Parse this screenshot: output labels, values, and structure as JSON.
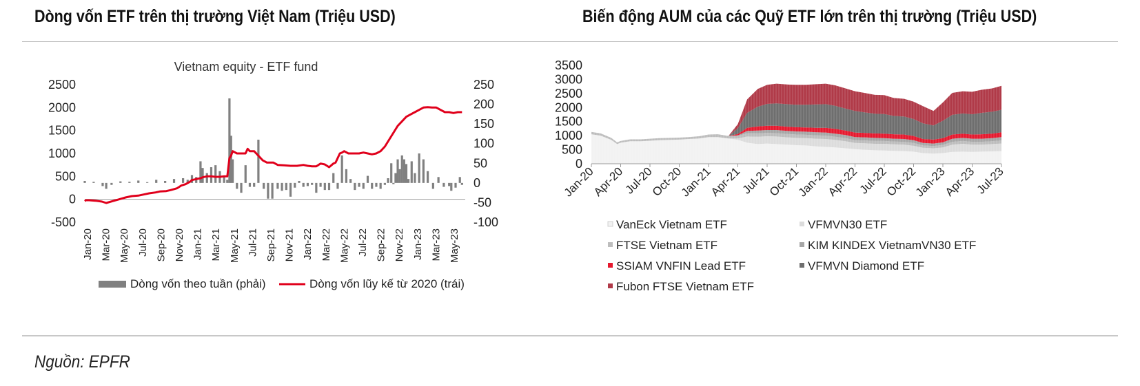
{
  "page": {
    "left_title": "Dòng vốn ETF trên thị trường Việt Nam (Triệu USD)",
    "right_title": "Biến động AUM của các Quỹ ETF lớn trên thị trường (Triệu USD)",
    "source": "Nguồn: EPFR"
  },
  "chart_data": [
    {
      "type": "bar+line",
      "title": "Vietnam equity - ETF fund",
      "x_tick_labels": [
        "Jan-20",
        "Mar-20",
        "May-20",
        "Jul-20",
        "Sep-20",
        "Nov-20",
        "Jan-21",
        "Mar-21",
        "May-21",
        "Jul-21",
        "Sep-21",
        "Nov-21",
        "Jan-22",
        "Mar-22",
        "May-22",
        "Jul-22",
        "Sep-22",
        "Nov-22",
        "Jan-23",
        "Mar-23",
        "May-23"
      ],
      "left_axis": {
        "ticks": [
          "2500",
          "2000",
          "1500",
          "1000",
          "500",
          "0",
          "-500"
        ],
        "ylim": [
          -500,
          2500
        ]
      },
      "right_axis": {
        "ticks": [
          "250",
          "200",
          "150",
          "100",
          "50",
          "0",
          "-50",
          "-100"
        ],
        "ylim": [
          -100,
          250
        ]
      },
      "legend": "bottom",
      "series": [
        {
          "name": "Dòng vốn theo tuần (phải)",
          "kind": "bar",
          "axis": "right",
          "color": "#808080",
          "x": [
            2020.0,
            2020.083,
            2020.167,
            2020.2,
            2020.25,
            2020.333,
            2020.417,
            2020.5,
            2020.583,
            2020.667,
            2020.75,
            2020.833,
            2020.917,
            2020.96,
            2021.0,
            2021.04,
            2021.08,
            2021.1,
            2021.14,
            2021.18,
            2021.22,
            2021.26,
            2021.3,
            2021.33,
            2021.35,
            2021.365,
            2021.38,
            2021.42,
            2021.46,
            2021.5,
            2021.54,
            2021.58,
            2021.62,
            2021.67,
            2021.71,
            2021.75,
            2021.8,
            2021.84,
            2021.88,
            2021.92,
            2021.96,
            2022.0,
            2022.04,
            2022.08,
            2022.12,
            2022.16,
            2022.2,
            2022.24,
            2022.28,
            2022.32,
            2022.36,
            2022.4,
            2022.44,
            2022.48,
            2022.52,
            2022.56,
            2022.6,
            2022.64,
            2022.68,
            2022.72,
            2022.76,
            2022.8,
            2022.83,
            2022.86,
            2022.88,
            2022.9,
            2022.92,
            2022.94,
            2022.96,
            2022.98,
            2023.0,
            2023.02,
            2023.05,
            2023.08,
            2023.12,
            2023.16,
            2023.2,
            2023.25,
            2023.3,
            2023.35,
            2023.4,
            2023.42,
            2023.46,
            2023.5,
            2023.52
          ],
          "values": [
            5,
            3,
            -8,
            -15,
            -5,
            4,
            3,
            6,
            2,
            8,
            5,
            10,
            12,
            8,
            20,
            15,
            55,
            38,
            25,
            40,
            45,
            30,
            15,
            8,
            215,
            120,
            60,
            -15,
            -25,
            45,
            -10,
            -10,
            110,
            -15,
            -40,
            -40,
            -15,
            -20,
            -18,
            -35,
            -12,
            5,
            -10,
            -8,
            -5,
            -25,
            -10,
            -18,
            -18,
            25,
            -15,
            70,
            35,
            10,
            -18,
            -10,
            -15,
            18,
            -15,
            -10,
            -15,
            -5,
            12,
            50,
            -3,
            25,
            60,
            35,
            70,
            60,
            48,
            10,
            55,
            25,
            75,
            60,
            30,
            -15,
            15,
            -10,
            -8,
            -20,
            -12,
            15,
            -5
          ]
        },
        {
          "name": "Dòng vốn lũy kế từ 2020 (trái)",
          "kind": "line",
          "axis": "left",
          "color": "#e0001b",
          "x": [
            2020.0,
            2020.01,
            2020.04,
            2020.1,
            2020.16,
            2020.2,
            2020.26,
            2020.32,
            2020.38,
            2020.44,
            2020.5,
            2020.56,
            2020.6,
            2020.66,
            2020.7,
            2020.76,
            2020.8,
            2020.86,
            2020.9,
            2020.94,
            2020.98,
            2021.0,
            2021.04,
            2021.08,
            2021.1,
            2021.14,
            2021.18,
            2021.22,
            2021.26,
            2021.3,
            2021.33,
            2021.35,
            2021.365,
            2021.38,
            2021.42,
            2021.46,
            2021.5,
            2021.52,
            2021.54,
            2021.58,
            2021.62,
            2021.66,
            2021.7,
            2021.76,
            2021.8,
            2021.86,
            2021.92,
            2021.98,
            2022.04,
            2022.08,
            2022.12,
            2022.16,
            2022.2,
            2022.24,
            2022.28,
            2022.32,
            2022.34,
            2022.38,
            2022.4,
            2022.42,
            2022.46,
            2022.52,
            2022.56,
            2022.6,
            2022.64,
            2022.68,
            2022.72,
            2022.76,
            2022.8,
            2022.84,
            2022.88,
            2022.92,
            2022.96,
            2023.0,
            2023.04,
            2023.08,
            2023.12,
            2023.16,
            2023.2,
            2023.24,
            2023.28,
            2023.32,
            2023.36,
            2023.4,
            2023.44,
            2023.48,
            2023.52
          ],
          "values": [
            -40,
            -20,
            -20,
            -30,
            -50,
            -80,
            -40,
            0,
            40,
            70,
            80,
            110,
            130,
            150,
            170,
            180,
            200,
            240,
            300,
            330,
            380,
            420,
            440,
            460,
            480,
            500,
            500,
            490,
            490,
            500,
            500,
            900,
            950,
            1050,
            1000,
            1000,
            1000,
            1100,
            1050,
            1050,
            950,
            850,
            800,
            800,
            750,
            740,
            730,
            730,
            750,
            730,
            720,
            720,
            780,
            760,
            700,
            780,
            800,
            1000,
            1020,
            1050,
            1000,
            1000,
            1000,
            1020,
            1000,
            980,
            1000,
            1050,
            1150,
            1300,
            1450,
            1600,
            1700,
            1800,
            1850,
            1900,
            1950,
            2000,
            2010,
            2000,
            2000,
            1950,
            1900,
            1900,
            1880,
            1900,
            1900
          ]
        }
      ]
    },
    {
      "type": "area",
      "stacked": true,
      "x_tick_labels": [
        "Jan-20",
        "Apr-20",
        "Jul-20",
        "Oct-20",
        "Jan-21",
        "Apr-21",
        "Jul-21",
        "Oct-21",
        "Jan-22",
        "Apr-22",
        "Jul-22",
        "Oct-22",
        "Jan-23",
        "Apr-23",
        "Jul-23"
      ],
      "y_ticks": [
        "3500",
        "3000",
        "2500",
        "2000",
        "1500",
        "1000",
        "500",
        "0"
      ],
      "ylim": [
        0,
        3500
      ],
      "legend": "bottom",
      "x": [
        2020.0,
        2020.08,
        2020.17,
        2020.22,
        2020.25,
        2020.33,
        2020.42,
        2020.5,
        2020.58,
        2020.67,
        2020.75,
        2020.83,
        2020.92,
        2021.0,
        2021.08,
        2021.17,
        2021.25,
        2021.33,
        2021.42,
        2021.5,
        2021.58,
        2021.67,
        2021.75,
        2021.83,
        2021.92,
        2022.0,
        2022.08,
        2022.17,
        2022.25,
        2022.33,
        2022.42,
        2022.5,
        2022.58,
        2022.67,
        2022.75,
        2022.83,
        2022.92,
        2023.0,
        2023.08,
        2023.17,
        2023.25,
        2023.33,
        2023.42,
        2023.5
      ],
      "series": [
        {
          "name": "VanEck Vietnam ETF",
          "color": "#f2f2f2",
          "values": [
            1050,
            1000,
            850,
            700,
            750,
            800,
            800,
            820,
            840,
            850,
            860,
            880,
            900,
            950,
            950,
            900,
            850,
            750,
            700,
            720,
            700,
            680,
            660,
            650,
            620,
            600,
            580,
            550,
            520,
            500,
            480,
            470,
            460,
            450,
            430,
            380,
            360,
            380,
            420,
            430,
            420,
            430,
            440,
            450
          ]
        },
        {
          "name": "VFMVN30 ETF",
          "color": "#dcdcdc",
          "values": [
            0,
            0,
            0,
            0,
            0,
            0,
            0,
            0,
            0,
            0,
            0,
            0,
            0,
            0,
            0,
            0,
            50,
            220,
            260,
            260,
            270,
            260,
            260,
            260,
            270,
            280,
            270,
            250,
            220,
            230,
            230,
            240,
            230,
            230,
            210,
            190,
            190,
            200,
            260,
            280,
            260,
            250,
            260,
            270
          ]
        },
        {
          "name": "FTSE Vietnam ETF",
          "color": "#bdbdbd",
          "values": [
            80,
            80,
            70,
            60,
            60,
            70,
            70,
            70,
            70,
            70,
            70,
            70,
            80,
            90,
            100,
            90,
            90,
            120,
            120,
            120,
            120,
            120,
            120,
            120,
            120,
            120,
            110,
            110,
            100,
            100,
            100,
            100,
            100,
            100,
            100,
            80,
            80,
            90,
            100,
            100,
            100,
            100,
            100,
            110
          ]
        },
        {
          "name": "KIM KINDEX VietnamVN30 ETF",
          "color": "#a6a6a6",
          "values": [
            0,
            0,
            0,
            0,
            0,
            0,
            0,
            0,
            0,
            0,
            0,
            0,
            0,
            0,
            0,
            0,
            20,
            80,
            100,
            100,
            110,
            110,
            110,
            110,
            110,
            110,
            110,
            110,
            110,
            110,
            110,
            100,
            100,
            100,
            100,
            90,
            90,
            90,
            110,
            110,
            110,
            110,
            110,
            120
          ]
        },
        {
          "name": "SSIAM VNFIN Lead ETF",
          "color": "#e6192e",
          "values": [
            0,
            0,
            0,
            0,
            0,
            0,
            0,
            0,
            0,
            0,
            0,
            0,
            0,
            0,
            0,
            0,
            50,
            110,
            150,
            150,
            150,
            150,
            150,
            150,
            160,
            170,
            170,
            160,
            160,
            160,
            160,
            160,
            160,
            160,
            150,
            140,
            140,
            150,
            150,
            150,
            150,
            160,
            160,
            170
          ]
        },
        {
          "name": "VFMVN Diamond ETF",
          "color": "#6e6e6e",
          "values": [
            0,
            0,
            0,
            0,
            0,
            0,
            0,
            0,
            0,
            0,
            0,
            0,
            0,
            0,
            0,
            0,
            200,
            530,
            700,
            780,
            800,
            800,
            800,
            810,
            830,
            840,
            820,
            780,
            770,
            730,
            700,
            700,
            650,
            640,
            600,
            560,
            500,
            620,
            700,
            720,
            720,
            760,
            780,
            800
          ]
        },
        {
          "name": "Fubon FTSE Vietnam ETF",
          "color": "#b03a48",
          "values": [
            0,
            0,
            0,
            0,
            0,
            0,
            0,
            0,
            0,
            0,
            0,
            0,
            0,
            0,
            0,
            0,
            150,
            480,
            630,
            680,
            700,
            700,
            710,
            710,
            720,
            730,
            730,
            720,
            700,
            690,
            670,
            670,
            640,
            630,
            620,
            610,
            520,
            650,
            780,
            790,
            800,
            820,
            830,
            850
          ]
        }
      ]
    }
  ]
}
